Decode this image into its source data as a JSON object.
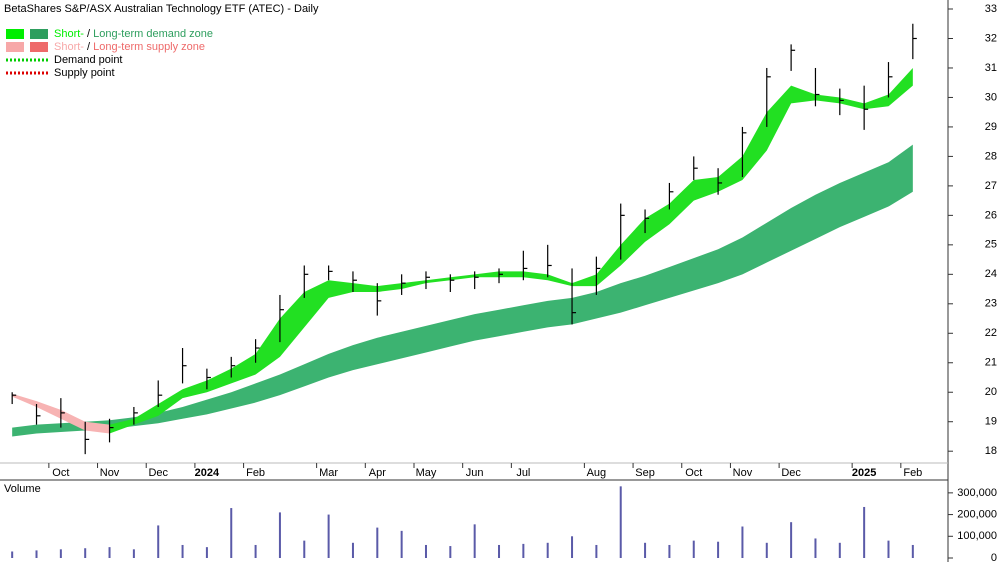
{
  "chart_data": [
    {
      "type": "ohlc",
      "title": "BetaShares S&P/ASX Australian Technology ETF (ATEC) - Daily",
      "categories": [
        null,
        null,
        "Oct",
        null,
        "Nov",
        null,
        "Dec",
        null,
        "2024",
        null,
        "Feb",
        null,
        null,
        "Mar",
        null,
        "Apr",
        null,
        "May",
        null,
        "Jun",
        null,
        "Jul",
        null,
        null,
        "Aug",
        null,
        "Sep",
        null,
        "Oct",
        null,
        "Nov",
        null,
        "Dec",
        null,
        null,
        "2025",
        null,
        "Feb"
      ],
      "high": [
        20.0,
        19.6,
        19.8,
        19.0,
        19.1,
        19.5,
        20.4,
        21.5,
        20.8,
        21.2,
        21.8,
        23.3,
        24.3,
        24.3,
        24.1,
        23.7,
        24.0,
        24.1,
        24.0,
        24.1,
        24.2,
        24.8,
        25.0,
        24.2,
        24.6,
        26.4,
        26.2,
        27.1,
        28.0,
        27.6,
        29.0,
        31.0,
        31.8,
        31.0,
        30.3,
        30.4,
        31.2,
        32.5
      ],
      "low": [
        19.6,
        18.9,
        18.8,
        17.9,
        18.3,
        18.9,
        19.5,
        20.3,
        20.1,
        20.5,
        21.0,
        21.7,
        23.2,
        23.8,
        23.4,
        22.6,
        23.3,
        23.5,
        23.4,
        23.5,
        23.7,
        23.8,
        23.9,
        22.3,
        23.3,
        24.5,
        25.4,
        26.2,
        27.2,
        26.7,
        27.3,
        29.0,
        30.9,
        29.7,
        29.4,
        28.9,
        30.0,
        31.3
      ],
      "close": [
        19.9,
        19.2,
        19.3,
        18.4,
        18.8,
        19.3,
        19.9,
        20.9,
        20.5,
        20.9,
        21.5,
        22.8,
        24.0,
        24.1,
        23.8,
        23.1,
        23.7,
        23.9,
        23.8,
        23.9,
        24.0,
        24.2,
        24.3,
        22.7,
        24.2,
        26.0,
        25.9,
        26.8,
        27.6,
        27.1,
        28.8,
        30.7,
        31.6,
        30.1,
        29.9,
        29.6,
        30.7,
        32.0
      ],
      "color": "#000000",
      "zones": [
        {
          "color": "#3cb371",
          "upper": [
            18.8,
            18.9,
            18.95,
            19.0,
            19.05,
            19.15,
            19.3,
            19.5,
            19.75,
            20.0,
            20.3,
            20.6,
            20.95,
            21.3,
            21.6,
            21.85,
            22.05,
            22.25,
            22.45,
            22.65,
            22.8,
            22.95,
            23.1,
            23.2,
            23.4,
            23.7,
            23.95,
            24.25,
            24.55,
            24.85,
            25.25,
            25.75,
            26.25,
            26.7,
            27.1,
            27.45,
            27.8,
            28.4
          ],
          "lower": [
            18.5,
            18.6,
            18.65,
            18.7,
            18.75,
            18.85,
            18.95,
            19.1,
            19.25,
            19.45,
            19.65,
            19.9,
            20.2,
            20.5,
            20.75,
            20.95,
            21.15,
            21.35,
            21.55,
            21.75,
            21.9,
            22.05,
            22.2,
            22.3,
            22.5,
            22.7,
            22.95,
            23.2,
            23.45,
            23.7,
            24.0,
            24.4,
            24.8,
            25.2,
            25.6,
            25.95,
            26.3,
            26.8
          ]
        },
        {
          "color": "#f7b3b3",
          "upper": [
            19.95,
            19.7,
            19.4,
            19.0,
            18.9,
            null,
            null,
            null,
            null,
            null,
            null,
            null,
            null,
            null,
            null,
            null,
            null,
            null,
            null,
            null,
            null,
            null,
            null,
            null,
            null,
            null,
            null,
            null,
            null,
            null,
            null,
            null,
            null,
            null,
            null,
            null,
            null,
            null
          ],
          "lower": [
            19.85,
            19.5,
            19.1,
            18.7,
            18.6,
            null,
            null,
            null,
            null,
            null,
            null,
            null,
            null,
            null,
            null,
            null,
            null,
            null,
            null,
            null,
            null,
            null,
            null,
            null,
            null,
            null,
            null,
            null,
            null,
            null,
            null,
            null,
            null,
            null,
            null,
            null,
            null,
            null
          ]
        },
        {
          "color": "#22e022",
          "upper": [
            null,
            null,
            null,
            null,
            18.9,
            19.1,
            19.6,
            20.1,
            20.4,
            20.8,
            21.3,
            22.5,
            23.4,
            23.8,
            23.7,
            23.6,
            23.7,
            23.8,
            23.9,
            24.0,
            24.1,
            24.1,
            24.0,
            23.7,
            24.0,
            25.0,
            25.9,
            26.4,
            27.2,
            27.3,
            28.0,
            29.5,
            30.4,
            30.1,
            30.0,
            29.8,
            30.1,
            31.0
          ],
          "lower": [
            null,
            null,
            null,
            null,
            18.6,
            18.9,
            19.2,
            19.8,
            20.0,
            20.3,
            20.6,
            21.2,
            22.2,
            23.2,
            23.4,
            23.4,
            23.5,
            23.7,
            23.8,
            23.9,
            23.9,
            23.9,
            23.8,
            23.6,
            23.6,
            24.3,
            25.1,
            25.7,
            26.5,
            26.8,
            27.2,
            28.2,
            29.8,
            29.9,
            29.8,
            29.6,
            29.7,
            30.4
          ]
        }
      ],
      "legend": [
        {
          "short": "Short-",
          "short_color": "#00ee00",
          "sep": " / ",
          "long": "Long-term demand zone",
          "long_color": "#2e9e5e"
        },
        {
          "short": "Short-",
          "short_color": "#f7a8a8",
          "sep": " / ",
          "long": "Long-term supply zone",
          "long_color": "#ee6a6a"
        },
        {
          "label": "Demand point",
          "color": "#00cc00"
        },
        {
          "label": "Supply point",
          "color": "#dd0000"
        }
      ],
      "ylim": [
        17.43,
        33.17
      ],
      "yticks": [
        18,
        19,
        20,
        21,
        22,
        23,
        24,
        25,
        26,
        27,
        28,
        29,
        30,
        31,
        32,
        33
      ]
    },
    {
      "type": "bar",
      "title": "Volume",
      "values": [
        30000,
        35000,
        40000,
        45000,
        50000,
        40000,
        150000,
        60000,
        50000,
        230000,
        60000,
        210000,
        80000,
        200000,
        70000,
        140000,
        125000,
        60000,
        55000,
        155000,
        60000,
        65000,
        70000,
        100000,
        60000,
        330000,
        70000,
        60000,
        80000,
        75000,
        145000,
        70000,
        165000,
        90000,
        70000,
        235000,
        80000,
        60000
      ],
      "color": "#5a5aa8",
      "ylim": [
        0,
        350000
      ],
      "yticks": [
        0,
        {
          "value": 100000,
          "label": "100,000"
        },
        {
          "value": 200000,
          "label": "200,000"
        },
        {
          "value": 300000,
          "label": "300,000"
        }
      ]
    }
  ]
}
